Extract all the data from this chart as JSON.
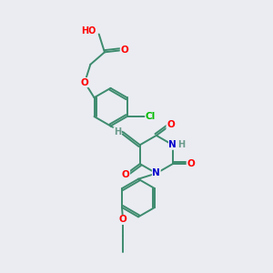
{
  "background_color": "#eaecf2",
  "bond_color": "#3d8b6e",
  "atom_colors": {
    "O": "#ff0000",
    "N": "#0000cc",
    "Cl": "#00bb00",
    "H": "#6a9a8a",
    "C": "#3d8b6e"
  },
  "figsize": [
    3.0,
    3.0
  ],
  "dpi": 100,
  "bond_lw": 1.4,
  "fontsize": 7.5
}
